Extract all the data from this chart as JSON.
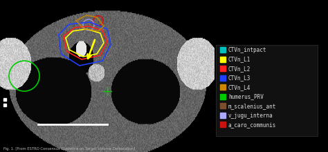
{
  "figure_width": 4.74,
  "figure_height": 2.2,
  "dpi": 100,
  "bg_color": "#000000",
  "legend_items": [
    {
      "label": "CTVn_intpact",
      "color": "#00BFBF"
    },
    {
      "label": "CTVn_L1",
      "color": "#FFFF00"
    },
    {
      "label": "CTVn_L2",
      "color": "#FF2020"
    },
    {
      "label": "CTVn_L3",
      "color": "#2040FF"
    },
    {
      "label": "CTVn_L4",
      "color": "#CC8800"
    },
    {
      "label": "humerus_PRV",
      "color": "#00CC00"
    },
    {
      "label": "m_scalenius_ant",
      "color": "#7B4F2E"
    },
    {
      "label": "v_jugu_interna",
      "color": "#AAAAFF"
    },
    {
      "label": "a_caro_communis",
      "color": "#CC1111"
    }
  ],
  "caption": "Fig. 1. [From ESTRO Consensus Guideline on Target Volume Delineation]",
  "legend_bg": "#111111",
  "legend_edge": "#333333",
  "legend_text_color": "#dddddd",
  "legend_fontsize": 5.5
}
